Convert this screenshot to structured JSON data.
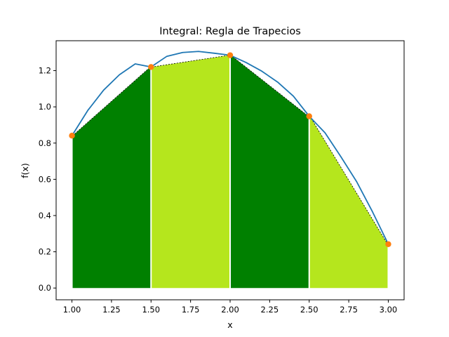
{
  "chart_data": {
    "type": "area",
    "title": "Integral: Regla de Trapecios",
    "xlabel": "x",
    "ylabel": "f(x)",
    "xlim": [
      0.9,
      3.1
    ],
    "ylim": [
      -0.065,
      1.365
    ],
    "xticks": [
      1.0,
      1.25,
      1.5,
      1.75,
      2.0,
      2.25,
      2.5,
      2.75,
      3.0
    ],
    "xtick_labels": [
      "1.00",
      "1.25",
      "1.50",
      "1.75",
      "2.00",
      "2.25",
      "2.50",
      "2.75",
      "3.00"
    ],
    "yticks": [
      0.0,
      0.2,
      0.4,
      0.6,
      0.8,
      1.0,
      1.2
    ],
    "ytick_labels": [
      "0.0",
      "0.2",
      "0.4",
      "0.6",
      "0.8",
      "1.0",
      "1.2"
    ],
    "grid": false,
    "curve": {
      "color": "#1f77b4",
      "x": [
        1.0,
        1.1,
        1.2,
        1.3,
        1.4,
        1.5,
        1.6,
        1.7,
        1.8,
        1.9,
        2.0,
        2.1,
        2.2,
        2.3,
        2.4,
        2.5,
        2.6,
        2.7,
        2.8,
        2.9,
        3.0
      ],
      "y": [
        0.841,
        0.98,
        1.092,
        1.177,
        1.237,
        1.22,
        1.279,
        1.3,
        1.306,
        1.296,
        1.285,
        1.245,
        1.197,
        1.137,
        1.059,
        0.948,
        0.857,
        0.725,
        0.587,
        0.421,
        0.242
      ]
    },
    "points": {
      "color": "#ff7f0e",
      "x": [
        1.0,
        1.5,
        2.0,
        2.5,
        3.0
      ],
      "y": [
        0.841,
        1.22,
        1.285,
        0.948,
        0.242
      ]
    },
    "trapezoids": [
      {
        "x0": 1.0,
        "x1": 1.5,
        "color": "#008000"
      },
      {
        "x0": 1.5,
        "x1": 2.0,
        "color": "#b5e61d"
      },
      {
        "x0": 2.0,
        "x1": 2.5,
        "color": "#008000"
      },
      {
        "x0": 2.5,
        "x1": 3.0,
        "color": "#b5e61d"
      }
    ]
  }
}
